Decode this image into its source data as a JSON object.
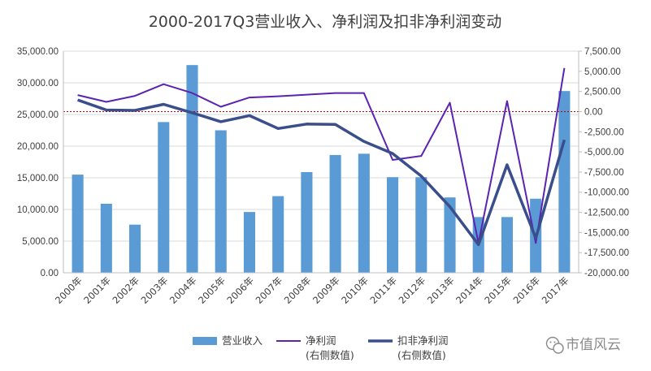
{
  "chart_data": {
    "type": "bar+line",
    "title": "2000-2017Q3营业收入、净利润及扣非净利润变动",
    "categories": [
      "2000年",
      "2001年",
      "2002年",
      "2003年",
      "2004年",
      "2005年",
      "2006年",
      "2007年",
      "2008年",
      "2009年",
      "2010年",
      "2011年",
      "2012年",
      "2013年",
      "2014年",
      "2015年",
      "2016年",
      "2017年"
    ],
    "left_axis": {
      "ylim": [
        0,
        35000
      ],
      "ticks": [
        "0.00",
        "5,000.00",
        "10,000.00",
        "15,000.00",
        "20,000.00",
        "25,000.00",
        "30,000.00",
        "35,000.00"
      ],
      "tick_values": [
        0,
        5000,
        10000,
        15000,
        20000,
        25000,
        30000,
        35000
      ]
    },
    "right_axis": {
      "ylim": [
        -20000,
        7500
      ],
      "ticks": [
        "-20,000.00",
        "-17,500.00",
        "-15,000.00",
        "-12,500.00",
        "-10,000.00",
        "-7,500.00",
        "-5,000.00",
        "-2,500.00",
        "0.00",
        "2,500.00",
        "5,000.00",
        "7,500.00"
      ],
      "tick_values": [
        -20000,
        -17500,
        -15000,
        -12500,
        -10000,
        -7500,
        -5000,
        -2500,
        0,
        2500,
        5000,
        7500
      ]
    },
    "zero_line_right": 0,
    "series": [
      {
        "name": "营业收入",
        "type": "bar",
        "axis": "left",
        "color": "#5B9BD5",
        "values": [
          15500,
          10900,
          7600,
          23800,
          32800,
          22500,
          9600,
          12100,
          15900,
          18600,
          18800,
          15100,
          15100,
          11900,
          8800,
          8800,
          11700,
          28700
        ]
      },
      {
        "name": "净利润",
        "legend_sub": "(右侧数值)",
        "type": "line",
        "axis": "right",
        "color": "#5B23B0",
        "values": [
          2050,
          1200,
          1950,
          3400,
          2300,
          600,
          1750,
          1900,
          2100,
          2300,
          2300,
          -6000,
          -5500,
          1100,
          -16300,
          1300,
          -16300,
          5400
        ]
      },
      {
        "name": "扣非净利润",
        "legend_sub": "(右侧数值)",
        "type": "line",
        "axis": "right",
        "color": "#3A4E8C",
        "values": [
          1450,
          200,
          150,
          900,
          -150,
          -1250,
          -500,
          -2100,
          -1550,
          -1600,
          -3700,
          -5200,
          -8000,
          -11800,
          -16500,
          -6600,
          -15700,
          -3500
        ]
      }
    ]
  },
  "watermark": {
    "icon": "wechat-icon",
    "text": "市值风云"
  }
}
